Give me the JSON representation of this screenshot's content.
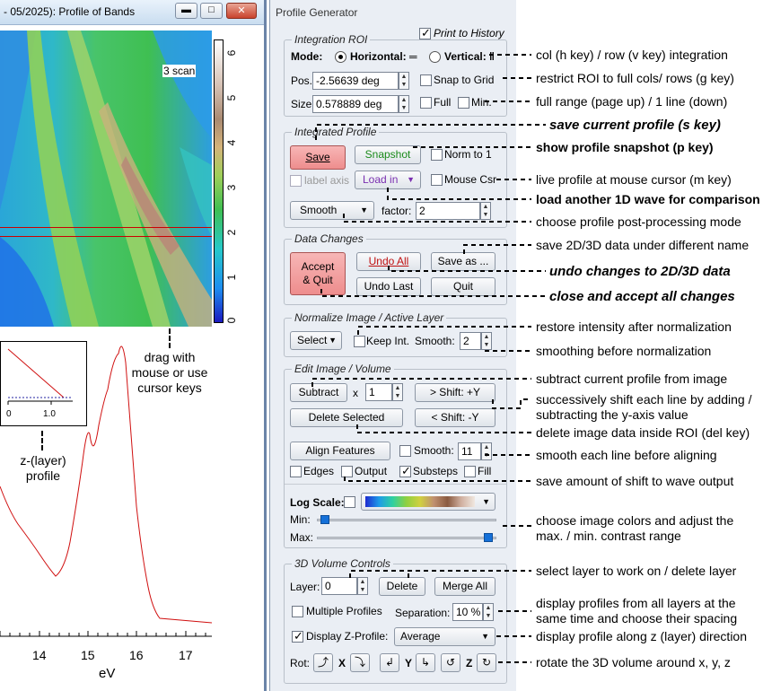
{
  "left_window": {
    "title": "- 05/2025): Profile of Bands",
    "scan_label": "3 scan",
    "colorscale_ticks": [
      "6",
      "5",
      "4",
      "3",
      "2",
      "1",
      "0"
    ],
    "x_axis_ticks": [
      "14",
      "15",
      "16",
      "17"
    ],
    "x_axis_label": "eV",
    "inset_ticks": [
      "0",
      "1.0"
    ],
    "drag_note": "drag with\nmouse or use\ncursor keys",
    "z_profile_note": "z-(layer)\nprofile"
  },
  "panel": {
    "title": "Profile Generator",
    "print_history": "Print to History",
    "integration": {
      "title": "Integration ROI",
      "mode_label": "Mode:",
      "horizontal": "Horizontal: ═",
      "vertical": "Vertical: ‖",
      "pos_label": "Pos.:",
      "pos_value": "-2.56639 deg",
      "size_label": "Size:",
      "size_value": "0.578889 deg",
      "snap": "Snap to Grid",
      "full": "Full",
      "min": "Min."
    },
    "profile": {
      "title": "Integrated Profile",
      "save": "Save",
      "snapshot": "Snapshot",
      "norm": "Norm to 1",
      "label_axis": "label axis",
      "load_in": "Load in",
      "mouse_csr": "Mouse Csr",
      "smooth": "Smooth",
      "factor_label": "factor:",
      "factor_value": "2"
    },
    "data_changes": {
      "title": "Data Changes",
      "accept_quit": "Accept\n& Quit",
      "undo_all": "Undo All",
      "save_as": "Save as ...",
      "undo_last": "Undo Last",
      "quit": "Quit"
    },
    "normalize": {
      "title": "Normalize Image / Active Layer",
      "select": "Select",
      "keep_int": "Keep Int.",
      "smooth_label": "Smooth:",
      "smooth_value": "2"
    },
    "edit": {
      "title": "Edit Image / Volume",
      "subtract": "Subtract",
      "x_label": "x",
      "sub_value": "1",
      "shift_up": "> Shift: +Y",
      "delete_selected": "Delete Selected",
      "shift_down": "< Shift: -Y",
      "align": "Align Features",
      "smooth_label": "Smooth:",
      "smooth_value": "11",
      "edges": "Edges",
      "output": "Output",
      "substeps": "Substeps",
      "fill": "Fill",
      "log_scale": "Log Scale:",
      "min_label": "Min:",
      "max_label": "Max:",
      "min_level": 0.02,
      "max_level": 0.98
    },
    "volume": {
      "title": "3D Volume Controls",
      "layer_label": "Layer:",
      "layer_value": "0",
      "delete": "Delete",
      "merge_all": "Merge All",
      "multiple_profiles": "Multiple Profiles",
      "separation_label": "Separation:",
      "separation_value": "10 %",
      "display_z": "Display Z-Profile:",
      "z_mode": "Average",
      "rot_label": "Rot:",
      "x": "X",
      "y": "Y",
      "z": "Z"
    }
  },
  "annotations": {
    "a1": "col (h key) / row (v key) integration",
    "a2": "restrict ROI to full cols/ rows (g key)",
    "a3": "full range (page up) / 1 line (down)",
    "a4": "save current profile (s key)",
    "a5": "show profile snapshot (p key)",
    "a6": "live profile at mouse cursor (m key)",
    "a7": "load another 1D wave for comparison",
    "a8": "choose profile post-processing mode",
    "a9": "save 2D/3D data under different name",
    "a10": "undo changes to 2D/3D data",
    "a11": "close and accept all changes",
    "a12": "restore intensity after normalization",
    "a13": "smoothing before normalization",
    "a14": "subtract current profile from image",
    "a15": "successively shift each line by adding /\nsubtracting the y-axis value",
    "a16": "delete image data inside ROI (del key)",
    "a17": "smooth each line before aligning",
    "a18": "save amount of shift to wave output",
    "a19": "choose image colors and adjust the\nmax. / min. contrast range",
    "a20": "select layer to work on / delete layer",
    "a21": "display profiles from all layers at the\nsame time and choose their spacing",
    "a22": "display profile along z (layer) direction",
    "a23": "rotate the 3D volume around x, y, z"
  },
  "colors": {
    "accent_red": "#f0a0a0",
    "load_in_text": "#7a2fb0",
    "slider_thumb": "#1570d8",
    "profile_line": "#d01010"
  }
}
